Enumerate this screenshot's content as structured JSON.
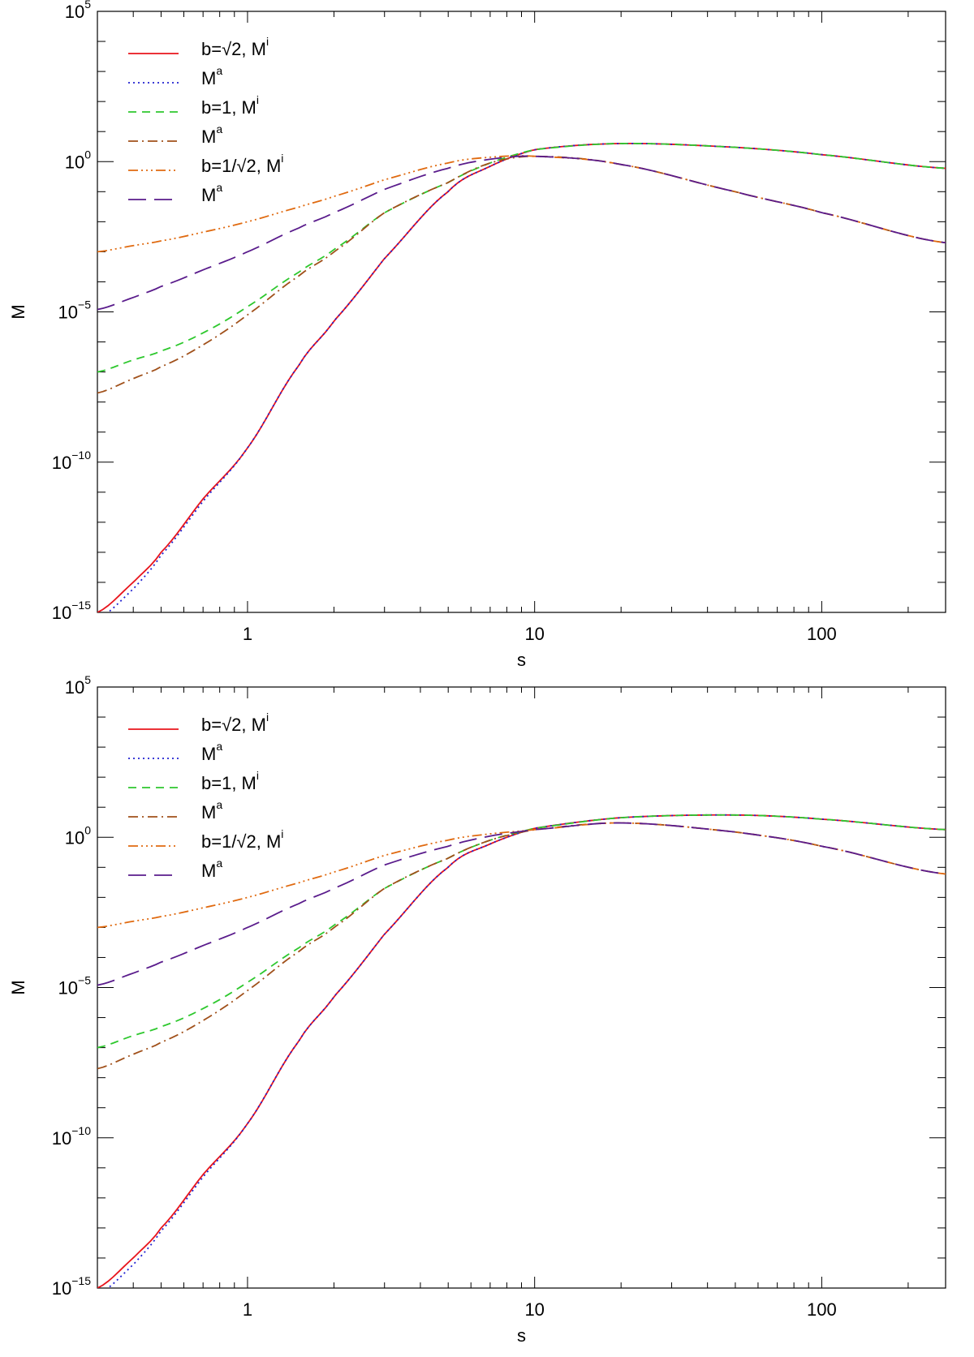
{
  "chart_data": [
    {
      "type": "line",
      "xscale": "log",
      "yscale": "log",
      "xlim": [
        0.3,
        270
      ],
      "ylim": [
        1e-15,
        100000.0
      ],
      "xlabel": "s",
      "ylabel": "M",
      "xticks": [
        {
          "value": 1,
          "label": "1"
        },
        {
          "value": 10,
          "label": "10"
        },
        {
          "value": 100,
          "label": "100"
        }
      ],
      "yticks": [
        {
          "value": 1e-15,
          "base": "10",
          "exp": "−15"
        },
        {
          "value": 1e-10,
          "base": "10",
          "exp": "−10"
        },
        {
          "value": 1e-05,
          "base": "10",
          "exp": "−5"
        },
        {
          "value": 1,
          "base": "10",
          "exp": "0"
        },
        {
          "value": 100000.0,
          "base": "10",
          "exp": "5"
        }
      ],
      "legend_position": "top-left",
      "series": [
        {
          "label_main": "b=√2,  M",
          "label_sup": "i",
          "color": "#e8141c",
          "dash": "",
          "width": 1.8,
          "x": [
            0.3,
            0.4,
            0.5,
            0.7,
            1,
            1.5,
            2,
            3,
            5,
            7,
            10,
            20,
            50,
            100,
            270
          ],
          "y": [
            1e-15,
            1e-14,
            1e-13,
            6e-12,
            3e-10,
            1.5e-07,
            5e-06,
            0.0006,
            0.1,
            0.7,
            2.5,
            4,
            3,
            1.7,
            0.6
          ]
        },
        {
          "label_main": "M",
          "label_sup": "a",
          "color": "#2020d0",
          "dash": "2,4",
          "width": 1.8,
          "x": [
            0.3,
            0.4,
            0.5,
            0.7,
            1,
            1.5,
            2,
            3,
            5,
            7,
            10,
            20,
            50,
            100,
            270
          ],
          "y": [
            6e-16,
            6e-15,
            8e-14,
            5e-12,
            3e-10,
            1.5e-07,
            5e-06,
            0.0006,
            0.1,
            0.7,
            2.5,
            4,
            3,
            1.7,
            0.6
          ]
        },
        {
          "label_main": "b=1,  M",
          "label_sup": "i",
          "color": "#2ec82e",
          "dash": "10,7",
          "width": 1.8,
          "x": [
            0.3,
            0.4,
            0.5,
            0.7,
            1,
            1.5,
            2,
            3,
            5,
            7,
            10,
            20,
            50,
            100,
            270
          ],
          "y": [
            1e-07,
            2.5e-07,
            5e-07,
            2e-06,
            1.5e-05,
            0.0002,
            0.0012,
            0.02,
            0.2,
            0.9,
            2.5,
            4,
            3,
            1.7,
            0.6
          ]
        },
        {
          "label_main": "M",
          "label_sup": "a",
          "color": "#a0501a",
          "dash": "12,5,2,5",
          "width": 1.8,
          "x": [
            0.3,
            0.4,
            0.5,
            0.7,
            1,
            1.5,
            2,
            3,
            5,
            7,
            10,
            20,
            50,
            100,
            270
          ],
          "y": [
            2e-08,
            6e-08,
            1.5e-07,
            8e-07,
            8e-06,
            0.00015,
            0.001,
            0.02,
            0.2,
            0.9,
            1.5,
            0.8,
            0.1,
            0.02,
            0.002
          ]
        },
        {
          "label_main": "b=1/√2,  M",
          "label_sup": "i",
          "color": "#e06a10",
          "dash": "12,4,2,4,2,4,2,4",
          "width": 1.8,
          "x": [
            0.3,
            0.4,
            0.5,
            0.7,
            1,
            1.5,
            2,
            3,
            5,
            7,
            10,
            20,
            50,
            100,
            270
          ],
          "y": [
            0.001,
            0.0016,
            0.0023,
            0.0045,
            0.01,
            0.03,
            0.07,
            0.25,
            0.9,
            1.4,
            1.5,
            0.8,
            0.1,
            0.02,
            0.002
          ]
        },
        {
          "label_main": "M",
          "label_sup": "a",
          "color": "#5a1c8c",
          "dash": "22,10",
          "width": 1.8,
          "x": [
            0.3,
            0.4,
            0.5,
            0.7,
            1,
            1.5,
            2,
            3,
            5,
            7,
            10,
            20,
            50,
            100,
            270
          ],
          "y": [
            1.2e-05,
            3e-05,
            7e-05,
            0.00025,
            0.001,
            0.006,
            0.02,
            0.12,
            0.6,
            1.2,
            1.5,
            0.8,
            0.1,
            0.02,
            0.002
          ]
        }
      ]
    },
    {
      "type": "line",
      "xscale": "log",
      "yscale": "log",
      "xlim": [
        0.3,
        270
      ],
      "ylim": [
        1e-15,
        100000.0
      ],
      "xlabel": "s",
      "ylabel": "M",
      "xticks": [
        {
          "value": 1,
          "label": "1"
        },
        {
          "value": 10,
          "label": "10"
        },
        {
          "value": 100,
          "label": "100"
        }
      ],
      "yticks": [
        {
          "value": 1e-15,
          "base": "10",
          "exp": "−15"
        },
        {
          "value": 1e-10,
          "base": "10",
          "exp": "−10"
        },
        {
          "value": 1e-05,
          "base": "10",
          "exp": "−5"
        },
        {
          "value": 1,
          "base": "10",
          "exp": "0"
        },
        {
          "value": 100000.0,
          "base": "10",
          "exp": "5"
        }
      ],
      "legend_position": "top-left",
      "series": [
        {
          "label_main": "b=√2,  M",
          "label_sup": "i",
          "color": "#e8141c",
          "dash": "",
          "width": 1.8,
          "x": [
            0.3,
            0.4,
            0.5,
            0.7,
            1,
            1.5,
            2,
            3,
            5,
            7,
            10,
            20,
            50,
            100,
            270
          ],
          "y": [
            1e-15,
            1e-14,
            1e-13,
            6e-12,
            3e-10,
            1.5e-07,
            5e-06,
            0.0006,
            0.1,
            0.6,
            2,
            4.5,
            5.5,
            4,
            1.8
          ]
        },
        {
          "label_main": "M",
          "label_sup": "a",
          "color": "#2020d0",
          "dash": "2,4",
          "width": 1.8,
          "x": [
            0.3,
            0.4,
            0.5,
            0.7,
            1,
            1.5,
            2,
            3,
            5,
            7,
            10,
            20,
            50,
            100,
            270
          ],
          "y": [
            6e-16,
            6e-15,
            8e-14,
            5e-12,
            3e-10,
            1.5e-07,
            5e-06,
            0.0006,
            0.1,
            0.6,
            2,
            4.5,
            5.5,
            4,
            1.8
          ]
        },
        {
          "label_main": "b=1,  M",
          "label_sup": "i",
          "color": "#2ec82e",
          "dash": "10,7",
          "width": 1.8,
          "x": [
            0.3,
            0.4,
            0.5,
            0.7,
            1,
            1.5,
            2,
            3,
            5,
            7,
            10,
            20,
            50,
            100,
            270
          ],
          "y": [
            1e-07,
            2.5e-07,
            5e-07,
            2e-06,
            1.5e-05,
            0.0002,
            0.0012,
            0.02,
            0.2,
            0.8,
            2,
            4.5,
            5.5,
            4,
            1.8
          ]
        },
        {
          "label_main": "M",
          "label_sup": "a",
          "color": "#a0501a",
          "dash": "12,5,2,5",
          "width": 1.8,
          "x": [
            0.3,
            0.4,
            0.5,
            0.7,
            1,
            1.5,
            2,
            3,
            5,
            7,
            10,
            20,
            50,
            100,
            270
          ],
          "y": [
            2e-08,
            6e-08,
            1.5e-07,
            8e-07,
            8e-06,
            0.00015,
            0.001,
            0.02,
            0.2,
            0.8,
            1.8,
            3,
            1.5,
            0.5,
            0.06
          ]
        },
        {
          "label_main": "b=1/√2,  M",
          "label_sup": "i",
          "color": "#e06a10",
          "dash": "12,4,2,4,2,4,2,4",
          "width": 1.8,
          "x": [
            0.3,
            0.4,
            0.5,
            0.7,
            1,
            1.5,
            2,
            3,
            5,
            7,
            10,
            20,
            50,
            100,
            270
          ],
          "y": [
            0.001,
            0.0016,
            0.0023,
            0.0045,
            0.01,
            0.03,
            0.07,
            0.25,
            0.8,
            1.3,
            1.8,
            3,
            1.5,
            0.5,
            0.06
          ]
        },
        {
          "label_main": "M",
          "label_sup": "a",
          "color": "#5a1c8c",
          "dash": "22,10",
          "width": 1.8,
          "x": [
            0.3,
            0.4,
            0.5,
            0.7,
            1,
            1.5,
            2,
            3,
            5,
            7,
            10,
            20,
            50,
            100,
            270
          ],
          "y": [
            1.2e-05,
            3e-05,
            7e-05,
            0.00025,
            0.001,
            0.006,
            0.02,
            0.12,
            0.5,
            1.1,
            1.8,
            3,
            1.5,
            0.5,
            0.06
          ]
        }
      ]
    }
  ]
}
